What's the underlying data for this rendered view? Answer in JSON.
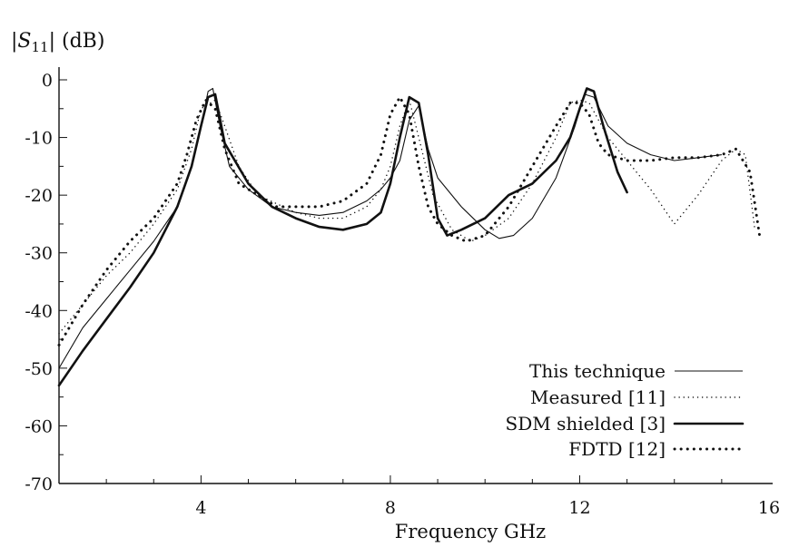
{
  "chart_data": {
    "type": "line",
    "title": "",
    "ylabel_main": "|S",
    "ylabel_sub": "11",
    "ylabel_tail": "| (dB)",
    "xlabel": "Frequency GHz",
    "xlim": [
      1,
      16
    ],
    "ylim": [
      -70,
      0
    ],
    "xticks": [
      4,
      8,
      12,
      16
    ],
    "yticks": [
      0,
      -10,
      -20,
      -30,
      -40,
      -50,
      -60,
      -70
    ],
    "xtick_labels": [
      "4",
      "8",
      "12",
      "16"
    ],
    "ytick_labels": [
      "0",
      "-10",
      "-20",
      "-30",
      "-40",
      "-50",
      "-60",
      "-70"
    ],
    "grid": false,
    "legend_position": "bottom-right",
    "series": [
      {
        "name": "This technique",
        "style": "thin",
        "x": [
          1.0,
          1.5,
          2.0,
          2.5,
          3.0,
          3.5,
          3.8,
          4.0,
          4.15,
          4.25,
          4.4,
          4.6,
          5.0,
          5.5,
          6.0,
          6.5,
          7.0,
          7.5,
          7.8,
          8.0,
          8.2,
          8.4,
          8.6,
          8.8,
          9.0,
          9.5,
          10.0,
          10.3,
          10.6,
          11.0,
          11.5,
          11.9,
          12.1,
          12.3,
          12.6,
          13.0,
          13.5,
          14.0,
          14.5,
          15.0
        ],
        "y": [
          -50,
          -43,
          -38,
          -33,
          -28,
          -22,
          -15,
          -8,
          -2,
          -1.5,
          -8,
          -15,
          -19,
          -22,
          -23,
          -23.5,
          -23,
          -21,
          -19,
          -17,
          -14,
          -7,
          -4.5,
          -12,
          -17,
          -22,
          -26,
          -27.5,
          -27,
          -24,
          -17,
          -8,
          -2.5,
          -3,
          -8,
          -11,
          -13,
          -14,
          -13.5,
          -13
        ]
      },
      {
        "name": "Measured [11]",
        "style": "dotted",
        "x": [
          1.0,
          1.5,
          2.0,
          2.5,
          3.0,
          3.5,
          3.8,
          4.0,
          4.3,
          4.5,
          4.8,
          5.2,
          6.0,
          6.5,
          7.0,
          7.5,
          7.8,
          8.0,
          8.2,
          8.4,
          8.6,
          8.9,
          9.3,
          9.7,
          10.0,
          10.5,
          11.0,
          11.5,
          11.8,
          12.0,
          12.2,
          12.6,
          13.0,
          13.5,
          14.0,
          14.5,
          15.0,
          15.3,
          15.5,
          15.7
        ],
        "y": [
          -44,
          -39,
          -34,
          -30,
          -25,
          -19,
          -12,
          -5,
          -3.5,
          -8,
          -15,
          -20,
          -23,
          -24,
          -24,
          -22,
          -19,
          -15,
          -8,
          -3.5,
          -10,
          -20,
          -26,
          -28,
          -27,
          -24,
          -18,
          -10,
          -4,
          -3.5,
          -4,
          -10,
          -14,
          -19,
          -25,
          -20,
          -14,
          -12,
          -13,
          -26
        ]
      },
      {
        "name": "SDM shielded [3]",
        "style": "thick",
        "x": [
          1.0,
          1.5,
          2.0,
          2.5,
          3.0,
          3.5,
          3.8,
          4.0,
          4.15,
          4.3,
          4.5,
          5.0,
          5.5,
          6.0,
          6.5,
          7.0,
          7.5,
          7.8,
          8.0,
          8.2,
          8.4,
          8.6,
          8.8,
          9.0,
          9.2,
          9.5,
          10.0,
          10.5,
          11.0,
          11.5,
          11.8,
          12.0,
          12.15,
          12.3,
          12.5,
          12.8,
          13.0
        ],
        "y": [
          -53,
          -47,
          -41.5,
          -36,
          -30,
          -22,
          -15,
          -8,
          -3,
          -2.5,
          -11,
          -18,
          -22,
          -24,
          -25.5,
          -26,
          -25,
          -23,
          -18,
          -10,
          -3,
          -4,
          -13,
          -24,
          -27,
          -26,
          -24,
          -20,
          -18,
          -14,
          -10,
          -5,
          -1.5,
          -2,
          -8,
          -16,
          -19.5
        ]
      },
      {
        "name": "FDTD [12]",
        "style": "dotted-bold",
        "x": [
          1.0,
          1.5,
          2.0,
          2.5,
          3.0,
          3.5,
          3.7,
          3.9,
          4.1,
          4.3,
          4.5,
          4.8,
          5.2,
          5.6,
          6.0,
          6.5,
          7.0,
          7.5,
          7.8,
          8.0,
          8.2,
          8.4,
          8.6,
          8.8,
          9.0,
          9.3,
          9.6,
          10.0,
          10.5,
          11.0,
          11.5,
          11.8,
          12.0,
          12.2,
          12.4,
          12.6,
          13.0,
          13.5,
          14.0,
          14.5,
          15.0,
          15.3,
          15.6,
          15.8
        ],
        "y": [
          -46,
          -39,
          -33,
          -28,
          -24,
          -18,
          -13,
          -7,
          -3.5,
          -5,
          -12,
          -18,
          -20,
          -22,
          -22,
          -22,
          -21,
          -18,
          -13,
          -6,
          -3,
          -6,
          -15,
          -22,
          -25,
          -27,
          -28,
          -27,
          -22,
          -15,
          -8,
          -4,
          -4,
          -6,
          -11,
          -13,
          -14,
          -14,
          -13.5,
          -13.5,
          -13,
          -12,
          -16,
          -27
        ]
      }
    ]
  }
}
